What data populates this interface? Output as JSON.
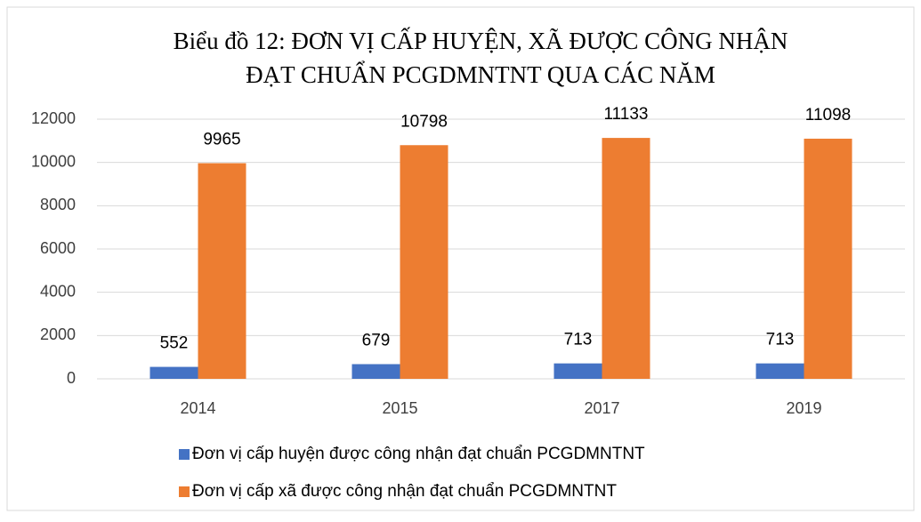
{
  "chart_data": {
    "type": "bar",
    "title": [
      "Biểu đồ 12: ĐƠN VỊ CẤP HUYỆN, XÃ ĐƯỢC CÔNG NHẬN",
      "ĐẠT CHUẨN PCGDMNTNT QUA CÁC NĂM"
    ],
    "categories": [
      "2014",
      "2015",
      "2017",
      "2019"
    ],
    "series": [
      {
        "name": "Đơn vị cấp huyện được công nhận đạt chuẩn PCGDMNTNT",
        "color": "#4472c4",
        "values": [
          552,
          679,
          713,
          713
        ]
      },
      {
        "name": "Đơn vị cấp xã được công nhận đạt chuẩn PCGDMNTNT",
        "color": "#ed7d31",
        "values": [
          9965,
          10798,
          11133,
          11098
        ]
      }
    ],
    "ylim": [
      0,
      12000
    ],
    "yticks": [
      0,
      2000,
      4000,
      6000,
      8000,
      10000,
      12000
    ],
    "grid": true,
    "legend": "bottom",
    "data_labels": true
  }
}
